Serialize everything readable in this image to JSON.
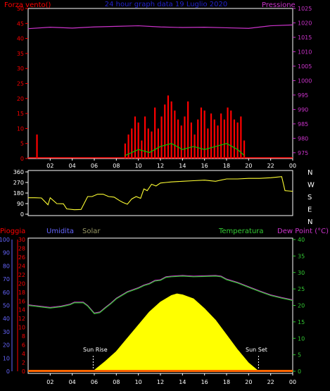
{
  "chart_data": [
    {
      "type": "line",
      "title": "24 hour graph data 19 Luglio 2020",
      "left_axis_label": "Forza vento()",
      "right_axis_label": "Pressione",
      "left_ticks": [
        0,
        5,
        10,
        15,
        20,
        25,
        30,
        35,
        40,
        45,
        50
      ],
      "right_ticks": [
        975,
        980,
        985,
        990,
        995,
        1000,
        1005,
        1010,
        1015,
        1020,
        1025
      ],
      "ylim_left": [
        0,
        50
      ],
      "ylim_right": [
        973,
        1025
      ],
      "x_tick_labels": [
        "02",
        "04",
        "06",
        "08",
        "10",
        "12",
        "14",
        "16",
        "18",
        "20",
        "22",
        "00"
      ],
      "colors": {
        "wind": "#ff0000",
        "gust": "#00cc00",
        "pressure": "#cc33cc",
        "left_axis": "#ff0000",
        "right_axis": "#cc33cc",
        "title": "#2222cc"
      },
      "series": [
        {
          "key": "pressure",
          "x": [
            0,
            2,
            4,
            6,
            8,
            10,
            12,
            14,
            16,
            18,
            20,
            22,
            24
          ],
          "values": [
            1018,
            1018.5,
            1018.2,
            1018.6,
            1018.8,
            1019,
            1018.6,
            1018.4,
            1018.5,
            1018.3,
            1018.1,
            1019,
            1019.3
          ]
        },
        {
          "key": "wind_spikes",
          "x": [
            0.8,
            8.8,
            9.1,
            9.4,
            9.7,
            10.0,
            10.3,
            10.6,
            10.9,
            11.2,
            11.5,
            11.8,
            12.1,
            12.4,
            12.7,
            13.0,
            13.3,
            13.6,
            13.9,
            14.2,
            14.5,
            14.8,
            15.1,
            15.4,
            15.7,
            16.0,
            16.3,
            16.6,
            16.9,
            17.2,
            17.5,
            17.8,
            18.1,
            18.4,
            18.7,
            19.0,
            19.3,
            19.6
          ],
          "values": [
            8,
            5,
            8,
            10,
            14,
            12,
            6,
            14,
            10,
            9,
            17,
            10,
            14,
            18,
            21,
            19,
            16,
            13,
            11,
            14,
            19,
            12,
            8,
            13,
            17,
            16,
            10,
            15,
            13,
            11,
            15,
            13,
            17,
            16,
            13,
            12,
            14,
            6
          ]
        },
        {
          "key": "wind_avg",
          "x": [
            8.8,
            10,
            11,
            12,
            13,
            14,
            15,
            16,
            17,
            18,
            19,
            19.6
          ],
          "values": [
            1,
            3,
            2,
            4,
            5,
            3,
            4,
            3,
            4,
            5,
            3,
            1
          ]
        }
      ]
    },
    {
      "type": "line",
      "title": "",
      "left_ticks": [
        0,
        90,
        180,
        270,
        360
      ],
      "ylim": [
        0,
        360
      ],
      "direction_labels": [
        "N",
        "W",
        "S",
        "E",
        "N"
      ],
      "colors": {
        "line": "#ffff33",
        "axis": "#ffffff"
      },
      "x": [
        0,
        0.6,
        1.2,
        1.8,
        2.0,
        2.6,
        3.2,
        3.5,
        4.2,
        4.8,
        5.4,
        5.8,
        6.3,
        6.8,
        7.3,
        7.8,
        8.3,
        8.6,
        9.0,
        9.4,
        9.8,
        10.2,
        10.5,
        10.8,
        11.2,
        11.6,
        12.0,
        12.5,
        13.0,
        14.0,
        15.0,
        16.0,
        17.0,
        18.0,
        19.0,
        20.0,
        21.0,
        22.0,
        23.0,
        23.3,
        24.0
      ],
      "values": [
        140,
        140,
        138,
        80,
        140,
        90,
        88,
        45,
        38,
        40,
        150,
        150,
        170,
        170,
        150,
        145,
        115,
        100,
        85,
        130,
        150,
        135,
        215,
        200,
        255,
        240,
        265,
        270,
        275,
        280,
        285,
        290,
        280,
        300,
        300,
        305,
        305,
        310,
        320,
        200,
        195
      ]
    },
    {
      "type": "area",
      "title": "",
      "top_labels": {
        "rain": "Pioggia",
        "humidity": "Umidita",
        "solar": "Solar",
        "temperature": "Temperatura",
        "dewpoint": "Dew Point (°C)"
      },
      "humidity_ticks": [
        0,
        10,
        20,
        30,
        40,
        50,
        60,
        70,
        80,
        90,
        100
      ],
      "rain_ticks": [
        0,
        2,
        4,
        6,
        8,
        10,
        12,
        14,
        16,
        18,
        20,
        22,
        24,
        26,
        28,
        30
      ],
      "temp_ticks": [
        0,
        5,
        10,
        15,
        20,
        25,
        30,
        35,
        40
      ],
      "ylim_temp": [
        0,
        40
      ],
      "x_tick_labels": [
        "02",
        "04",
        "06",
        "08",
        "10",
        "12",
        "14",
        "16",
        "18",
        "20",
        "22",
        "00"
      ],
      "annotations": [
        "Sun Rise",
        "Sun Set"
      ],
      "sun_rise_x": 5.9,
      "sun_set_x": 20.9,
      "colors": {
        "rain": "#ff0000",
        "humidity": "#6666ff",
        "solar": "#ffff00",
        "temperature": "#33cc33",
        "dewpoint": "#cc33cc",
        "solar_label": "#999966"
      },
      "series": [
        {
          "key": "temperature",
          "x": [
            0,
            0.5,
            1,
            2,
            3,
            3.8,
            4.2,
            5,
            5.4,
            6,
            6.5,
            7,
            7.5,
            8,
            9,
            10,
            10.5,
            11,
            11.5,
            12,
            12.5,
            13,
            14,
            15,
            16,
            17,
            17.5,
            18,
            19,
            20,
            21,
            22,
            23,
            24
          ],
          "values": [
            20,
            19.8,
            19.6,
            19.2,
            19.6,
            20.2,
            20.8,
            20.8,
            19.8,
            17.5,
            17.8,
            19.2,
            20.5,
            22,
            24,
            25.2,
            26,
            26.5,
            27.4,
            27.6,
            28.5,
            28.7,
            28.9,
            28.7,
            28.8,
            28.9,
            28.7,
            27.8,
            26.8,
            25.5,
            24.2,
            23,
            22.2,
            21.5
          ]
        },
        {
          "key": "solar",
          "x": [
            5.9,
            7,
            8,
            9,
            10,
            11,
            12,
            13,
            13.5,
            14,
            15,
            16,
            17,
            18,
            19,
            20,
            20.9
          ],
          "values": [
            0,
            3,
            6,
            10,
            14,
            18,
            21,
            23,
            23.5,
            23.2,
            22,
            19,
            15.5,
            11,
            6.5,
            2.5,
            0
          ]
        },
        {
          "key": "rain",
          "x": [
            0,
            24
          ],
          "values": [
            0,
            0
          ]
        }
      ]
    }
  ]
}
